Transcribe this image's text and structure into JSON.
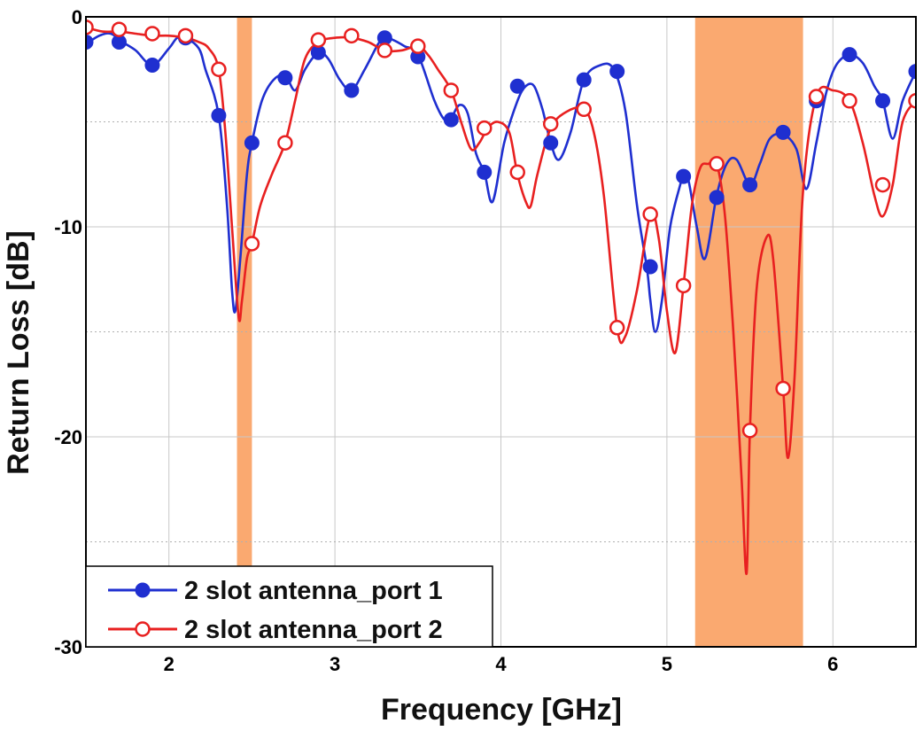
{
  "chart_data": {
    "type": "line",
    "title": "",
    "xlabel": "Frequency [GHz]",
    "ylabel": "Return Loss [dB]",
    "xlim": [
      1.5,
      6.5
    ],
    "ylim": [
      -30,
      0
    ],
    "x_ticks": [
      "2",
      "3",
      "4",
      "5",
      "6"
    ],
    "y_ticks": [
      "0",
      "-10",
      "-20",
      "-30"
    ],
    "grid": true,
    "minor_grid_y": [
      -5,
      -15,
      -25
    ],
    "legend_position": "bottom-left",
    "highlight_bands": [
      {
        "x": [
          2.41,
          2.5
        ],
        "color": "#f9a060"
      },
      {
        "x": [
          5.17,
          5.82
        ],
        "color": "#f9a060"
      }
    ],
    "series": [
      {
        "name": "2 slot antenna_port 1",
        "color": "#1f2fd0",
        "marker": "filled-circle",
        "x": [
          1.5,
          1.58,
          1.65,
          1.72,
          1.8,
          1.9,
          2.0,
          2.05,
          2.1,
          2.18,
          2.22,
          2.3,
          2.35,
          2.38,
          2.4,
          2.43,
          2.47,
          2.5,
          2.56,
          2.63,
          2.7,
          2.76,
          2.82,
          2.9,
          2.96,
          3.03,
          3.1,
          3.18,
          3.26,
          3.3,
          3.35,
          3.42,
          3.5,
          3.6,
          3.66,
          3.7,
          3.75,
          3.8,
          3.85,
          3.9,
          3.95,
          4.02,
          4.1,
          4.15,
          4.2,
          4.25,
          4.3,
          4.35,
          4.42,
          4.5,
          4.6,
          4.68,
          4.75,
          4.82,
          4.88,
          4.9,
          4.93,
          4.97,
          5.02,
          5.08,
          5.1,
          5.13,
          5.18,
          5.23,
          5.3,
          5.36,
          5.42,
          5.5,
          5.56,
          5.62,
          5.7,
          5.78,
          5.84,
          5.9,
          5.96,
          6.02,
          6.1,
          6.18,
          6.25,
          6.3,
          6.36,
          6.42,
          6.5
        ],
        "y": [
          -1.3,
          -0.9,
          -0.8,
          -1.2,
          -1.6,
          -2.3,
          -1.5,
          -1.0,
          -1.0,
          -1.5,
          -2.5,
          -4.7,
          -9.0,
          -13.0,
          -14.0,
          -11.5,
          -7.5,
          -6.0,
          -4.0,
          -3.0,
          -2.8,
          -3.5,
          -2.5,
          -1.7,
          -2.0,
          -3.0,
          -3.5,
          -2.5,
          -1.3,
          -1.0,
          -1.1,
          -1.4,
          -1.8,
          -4.0,
          -4.9,
          -4.8,
          -4.2,
          -4.6,
          -6.5,
          -7.4,
          -8.8,
          -6.0,
          -4.0,
          -3.3,
          -3.3,
          -4.4,
          -6.0,
          -6.8,
          -5.5,
          -3.0,
          -2.3,
          -2.5,
          -4.5,
          -9.0,
          -12.0,
          -13.5,
          -15.0,
          -13.5,
          -10.0,
          -8.0,
          -7.5,
          -7.8,
          -10.0,
          -11.5,
          -8.5,
          -7.0,
          -6.8,
          -8.0,
          -7.0,
          -5.8,
          -5.6,
          -6.3,
          -8.2,
          -6.0,
          -3.6,
          -2.3,
          -1.8,
          -2.2,
          -3.3,
          -4.0,
          -5.8,
          -4.0,
          -2.6
        ]
      },
      {
        "name": "2 slot antenna_port 2",
        "color": "#e82020",
        "marker": "open-circle",
        "x": [
          1.5,
          1.6,
          1.7,
          1.8,
          1.9,
          2.0,
          2.1,
          2.18,
          2.24,
          2.3,
          2.34,
          2.38,
          2.42,
          2.44,
          2.47,
          2.5,
          2.55,
          2.62,
          2.7,
          2.76,
          2.82,
          2.9,
          3.0,
          3.1,
          3.2,
          3.3,
          3.4,
          3.5,
          3.56,
          3.62,
          3.7,
          3.76,
          3.82,
          3.87,
          3.92,
          3.98,
          4.05,
          4.1,
          4.15,
          4.18,
          4.22,
          4.3,
          4.4,
          4.5,
          4.56,
          4.62,
          4.7,
          4.75,
          4.82,
          4.9,
          4.95,
          5.0,
          5.05,
          5.1,
          5.15,
          5.2,
          5.25,
          5.3,
          5.35,
          5.4,
          5.45,
          5.48,
          5.5,
          5.54,
          5.6,
          5.64,
          5.7,
          5.73,
          5.77,
          5.82,
          5.9,
          6.0,
          6.1,
          6.18,
          6.25,
          6.3,
          6.36,
          6.42,
          6.5
        ],
        "y": [
          -0.5,
          -0.7,
          -0.7,
          -0.8,
          -0.9,
          -0.9,
          -1.0,
          -1.2,
          -1.5,
          -2.5,
          -5.5,
          -10.0,
          -14.3,
          -13.5,
          -11.5,
          -10.8,
          -9.0,
          -7.5,
          -6.0,
          -4.0,
          -2.0,
          -1.2,
          -1.0,
          -1.0,
          -1.2,
          -1.6,
          -1.6,
          -1.4,
          -1.8,
          -2.5,
          -3.5,
          -5.0,
          -6.3,
          -6.0,
          -5.3,
          -5.0,
          -5.5,
          -7.5,
          -8.8,
          -9.0,
          -7.5,
          -5.3,
          -4.5,
          -4.4,
          -5.5,
          -8.5,
          -14.8,
          -15.2,
          -13.0,
          -9.4,
          -10.5,
          -14.0,
          -16.0,
          -12.8,
          -9.0,
          -7.2,
          -7.0,
          -7.0,
          -9.5,
          -15.0,
          -22.0,
          -26.5,
          -19.7,
          -13.0,
          -10.5,
          -11.5,
          -17.7,
          -21.0,
          -17.0,
          -8.3,
          -3.8,
          -3.5,
          -4.0,
          -6.0,
          -8.5,
          -9.5,
          -8.0,
          -5.0,
          -4.0
        ]
      }
    ],
    "marker_points": [
      {
        "x": [
          1.5,
          1.7,
          1.9,
          2.1,
          2.3,
          2.5,
          2.7,
          2.9,
          3.1,
          3.3,
          3.5,
          3.7,
          3.9,
          4.1,
          4.3,
          4.5,
          4.7,
          4.9,
          5.1,
          5.3,
          5.5,
          5.7,
          5.9,
          6.1,
          6.3,
          6.5
        ],
        "y": [
          -1.2,
          -1.2,
          -2.3,
          -1.0,
          -4.7,
          -6.0,
          -2.9,
          -1.7,
          -3.5,
          -1.0,
          -1.9,
          -4.9,
          -7.4,
          -3.3,
          -6.0,
          -3.0,
          -2.6,
          -11.9,
          -7.6,
          -8.6,
          -8.0,
          -5.5,
          -4.0,
          -1.8,
          -4.0,
          -2.6
        ]
      },
      {
        "x": [
          1.5,
          1.7,
          1.9,
          2.1,
          2.3,
          2.5,
          2.7,
          2.9,
          3.1,
          3.3,
          3.5,
          3.7,
          3.9,
          4.1,
          4.3,
          4.5,
          4.7,
          4.9,
          5.1,
          5.3,
          5.5,
          5.7,
          5.9,
          6.1,
          6.3,
          6.5
        ],
        "y": [
          -0.5,
          -0.6,
          -0.8,
          -0.9,
          -2.5,
          -10.8,
          -6.0,
          -1.1,
          -0.9,
          -1.6,
          -1.4,
          -3.5,
          -5.3,
          -7.4,
          -5.1,
          -4.4,
          -14.8,
          -9.4,
          -12.8,
          -7.0,
          -19.7,
          -17.7,
          -3.8,
          -4.0,
          -8.0,
          -4.0
        ]
      }
    ]
  }
}
